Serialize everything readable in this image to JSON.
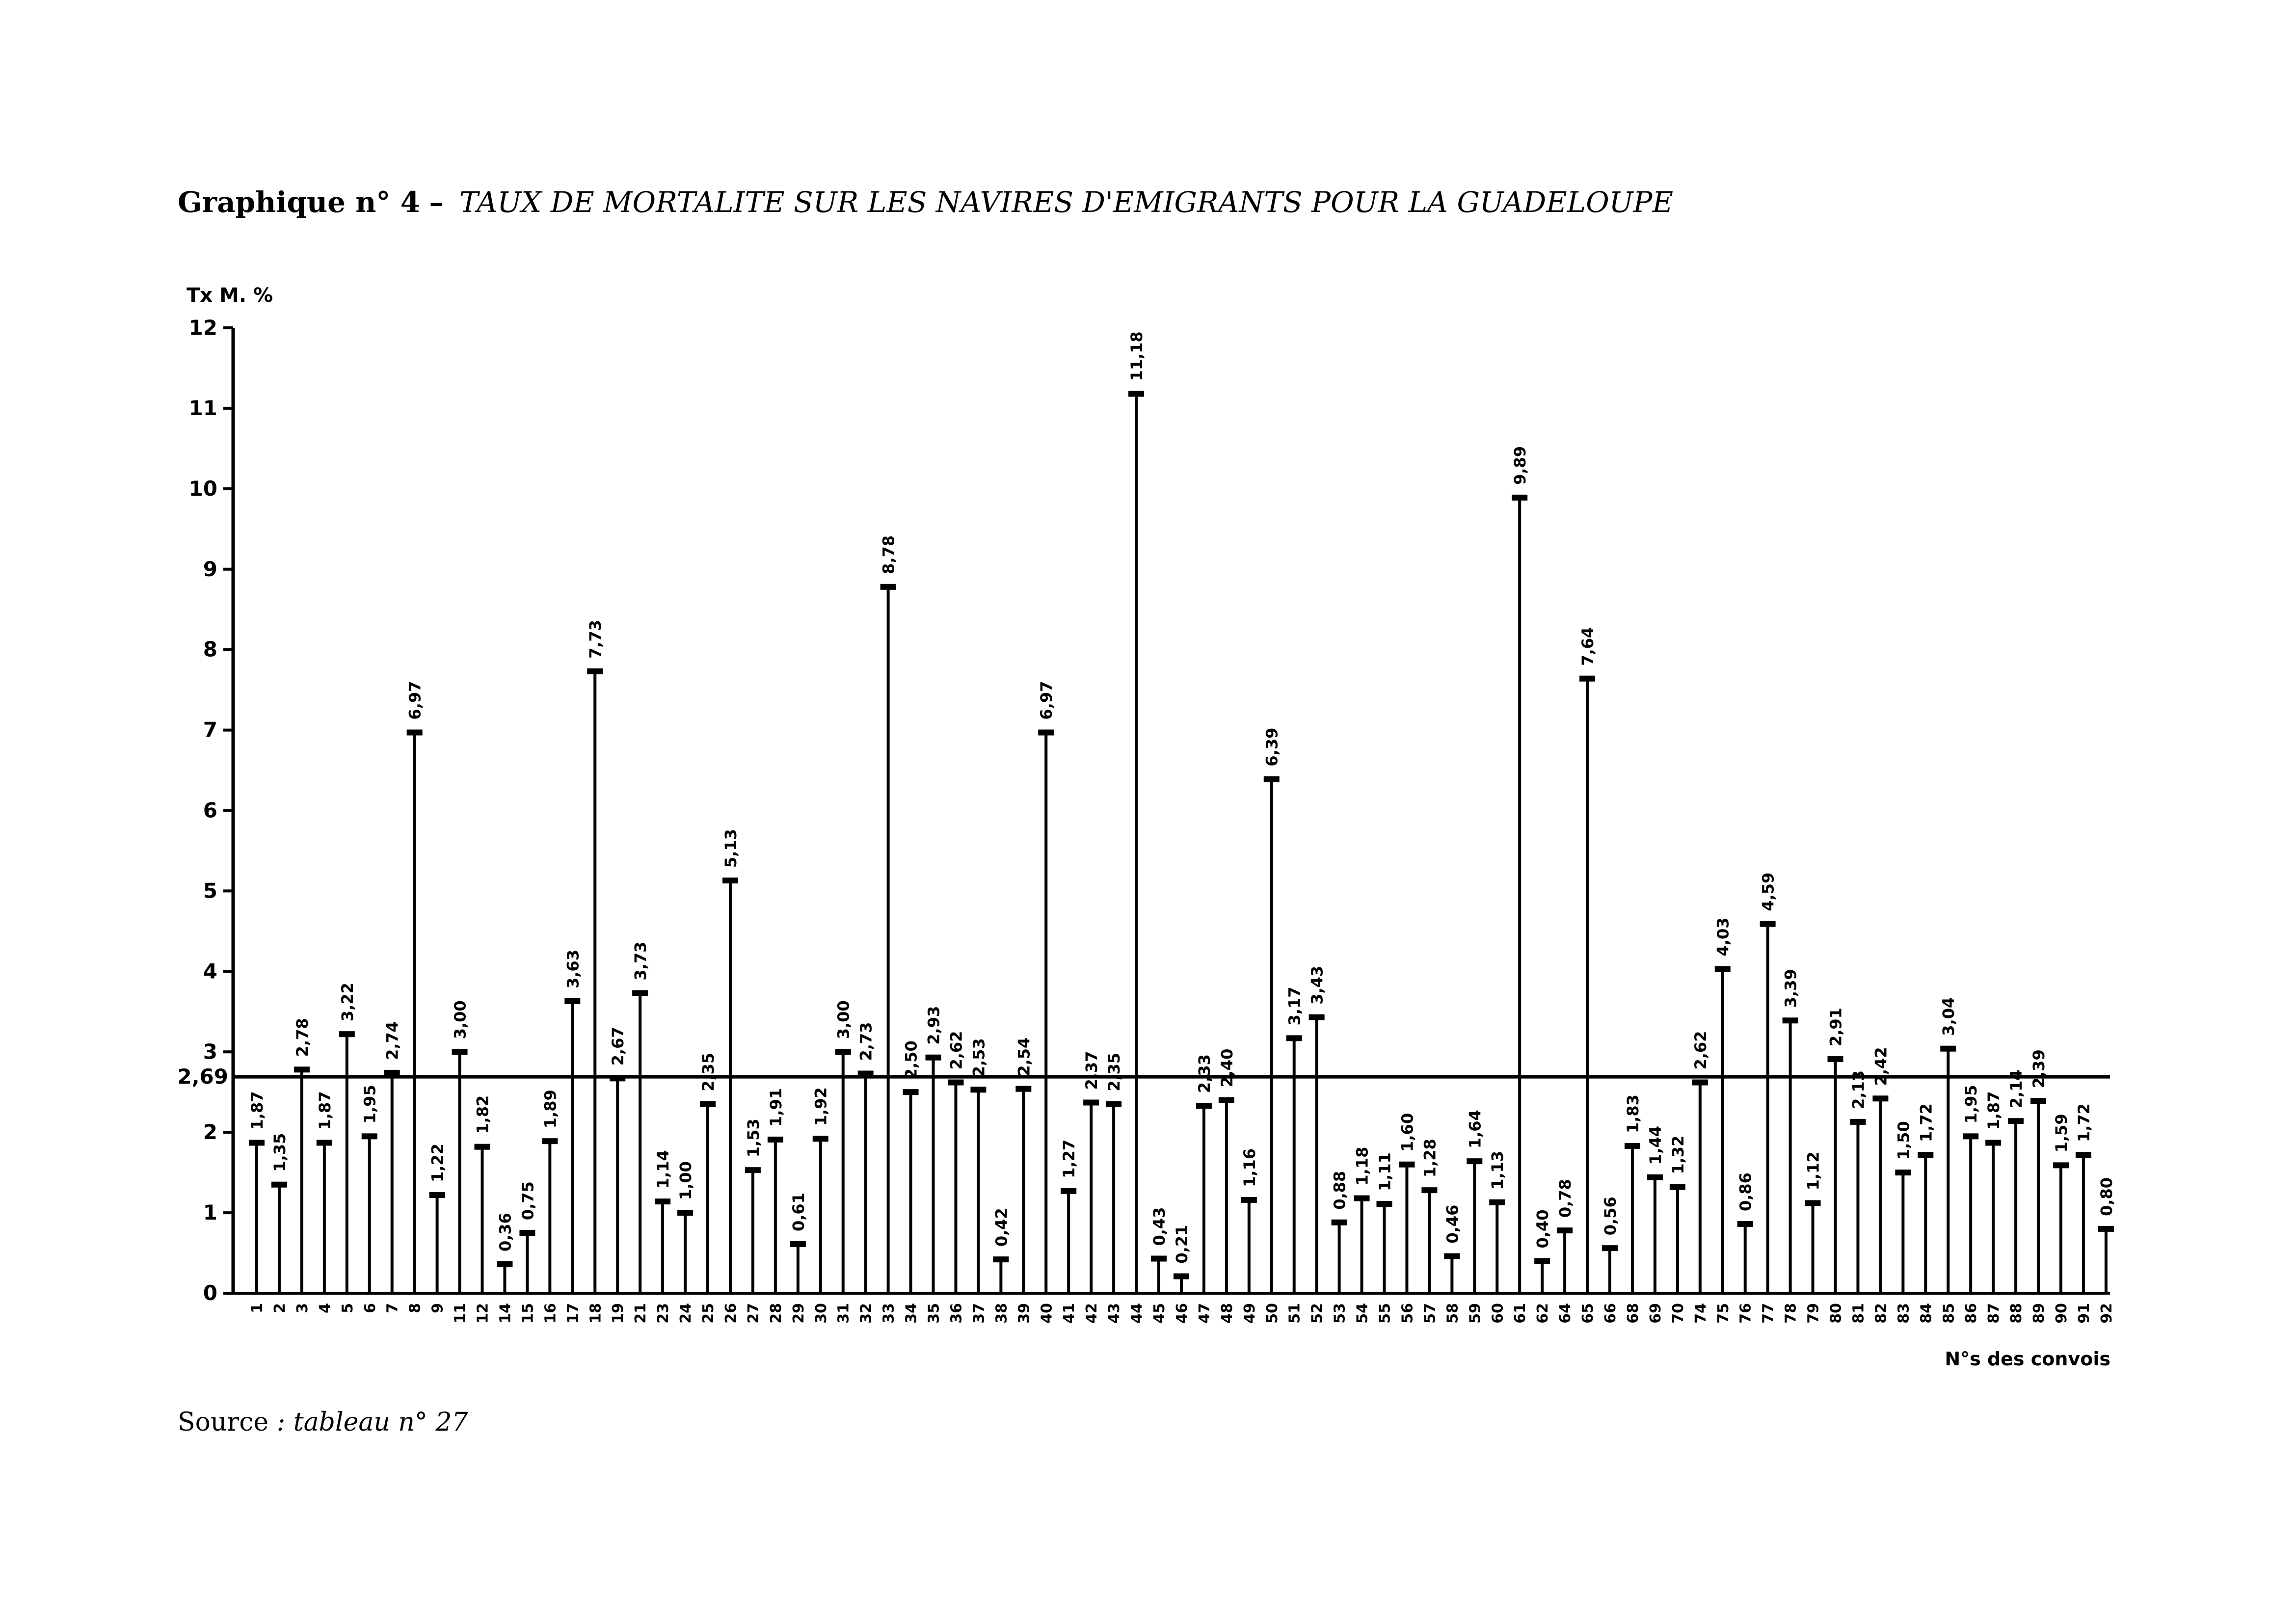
{
  "figure": {
    "number_label": "Graphique n° 4",
    "separator": "–",
    "title": "TAUX DE MORTALITE SUR LES NAVIRES D'EMIGRANTS POUR LA GUADELOUPE",
    "source_label": "Source",
    "source_ref": ": tableau n° 27"
  },
  "chart_data": {
    "type": "bar",
    "style": "stem",
    "ylabel": "Tx M. %",
    "xlabel": "N°s des convois",
    "ylim": [
      0,
      12
    ],
    "yticks": [
      0,
      1,
      2,
      3,
      4,
      5,
      6,
      7,
      8,
      9,
      10,
      11,
      12
    ],
    "grid": false,
    "reference_line": {
      "value": 2.69,
      "label": "2,69"
    },
    "categories": [
      "1",
      "2",
      "3",
      "4",
      "5",
      "6",
      "7",
      "8",
      "9",
      "11",
      "12",
      "14",
      "15",
      "16",
      "17",
      "18",
      "19",
      "21",
      "23",
      "24",
      "25",
      "26",
      "27",
      "28",
      "29",
      "30",
      "31",
      "32",
      "33",
      "34",
      "35",
      "36",
      "37",
      "38",
      "39",
      "40",
      "41",
      "42",
      "43",
      "44",
      "45",
      "46",
      "47",
      "48",
      "49",
      "50",
      "51",
      "52",
      "53",
      "54",
      "55",
      "56",
      "57",
      "58",
      "59",
      "60",
      "61",
      "62",
      "64",
      "65",
      "66",
      "68",
      "69",
      "70",
      "74",
      "75",
      "76",
      "77",
      "78",
      "79",
      "80",
      "81",
      "82",
      "83",
      "84",
      "85",
      "86",
      "87",
      "88",
      "89",
      "90",
      "91",
      "92"
    ],
    "values": [
      1.87,
      1.35,
      2.78,
      1.87,
      3.22,
      1.95,
      2.74,
      6.97,
      1.22,
      3.0,
      1.82,
      0.36,
      0.75,
      1.89,
      3.63,
      7.73,
      2.67,
      3.73,
      1.14,
      1.0,
      2.35,
      5.13,
      1.53,
      1.91,
      0.61,
      1.92,
      3.0,
      2.73,
      8.78,
      2.5,
      2.93,
      2.62,
      2.53,
      0.42,
      2.54,
      6.97,
      1.27,
      2.37,
      2.35,
      11.18,
      0.43,
      0.21,
      2.33,
      2.4,
      1.16,
      6.39,
      3.17,
      3.43,
      0.88,
      1.18,
      1.11,
      1.6,
      1.28,
      0.46,
      1.64,
      1.13,
      9.89,
      0.4,
      0.78,
      7.64,
      0.56,
      1.83,
      1.44,
      1.32,
      2.62,
      4.03,
      0.86,
      4.59,
      3.39,
      1.12,
      2.91,
      2.13,
      2.42,
      1.5,
      1.72,
      3.04,
      1.95,
      1.87,
      2.14,
      2.39,
      1.59,
      1.72,
      0.8
    ],
    "value_labels": [
      "1,87",
      "1,35",
      "2,78",
      "1,87",
      "3,22",
      "1,95",
      "2,74",
      "6,97",
      "1,22",
      "3,00",
      "1,82",
      "0,36",
      "0,75",
      "1,89",
      "3,63",
      "7,73",
      "2,67",
      "3,73",
      "1,14",
      "1,00",
      "2,35",
      "5,13",
      "1,53",
      "1,91",
      "0,61",
      "1,92",
      "3,00",
      "2,73",
      "8,78",
      "2,50",
      "2,93",
      "2,62",
      "2,53",
      "0,42",
      "2,54",
      "6,97",
      "1,27",
      "2,37",
      "2,35",
      "11,18",
      "0,43",
      "0,21",
      "2,33",
      "2,40",
      "1,16",
      "6,39",
      "3,17",
      "3,43",
      "0,88",
      "1,18",
      "1,11",
      "1,60",
      "1,28",
      "0,46",
      "1,64",
      "1,13",
      "9,89",
      "0,40",
      "0,78",
      "7,64",
      "0,56",
      "1,83",
      "1,44",
      "1,32",
      "2,62",
      "4,03",
      "0,86",
      "4,59",
      "3,39",
      "1,12",
      "2,91",
      "2,13",
      "2,42",
      "1,50",
      "1,72",
      "3,04",
      "1,95",
      "1,87",
      "2,14",
      "2,39",
      "1,59",
      "1,72",
      "0,80"
    ]
  }
}
